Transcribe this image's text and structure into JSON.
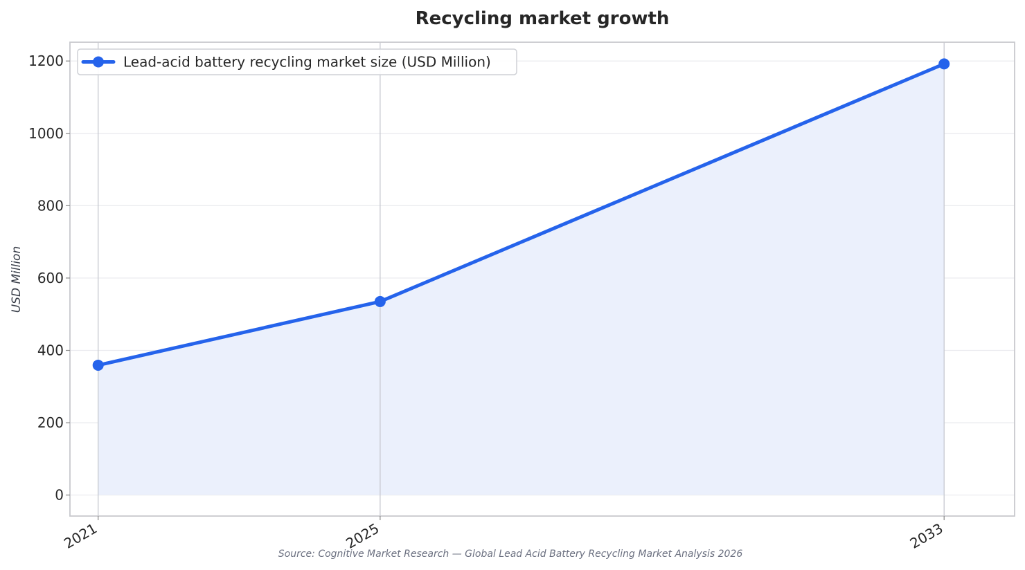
{
  "colors": {
    "series": "#2563eb",
    "fill": "#ebf0fc",
    "grid": "#e9eaee",
    "vline": "#c6c8cf",
    "frame": "#c8c9ce",
    "text": "#262626",
    "muted": "#6b7080"
  },
  "source_note": "Source: Cognitive Market Research — Global Lead Acid Battery Recycling Market Analysis 2026",
  "chart_data": {
    "type": "area",
    "title": "Recycling market growth",
    "xlabel": "",
    "ylabel": "USD Million",
    "x": [
      2021,
      2025,
      2033
    ],
    "x_tick_labels": [
      "2021",
      "2025",
      "2033"
    ],
    "y_ticks": [
      0,
      200,
      400,
      600,
      800,
      1000,
      1200
    ],
    "y_tick_labels": [
      "0",
      "200",
      "400",
      "600",
      "800",
      "1000",
      "1200"
    ],
    "ylim": [
      -58,
      1252
    ],
    "xlim": [
      2020.6,
      2034.0
    ],
    "grid": true,
    "legend_position": "top-left",
    "series": [
      {
        "name": "Lead-acid battery recycling market size (USD Million)",
        "values": [
          359,
          535,
          1192
        ]
      }
    ]
  }
}
